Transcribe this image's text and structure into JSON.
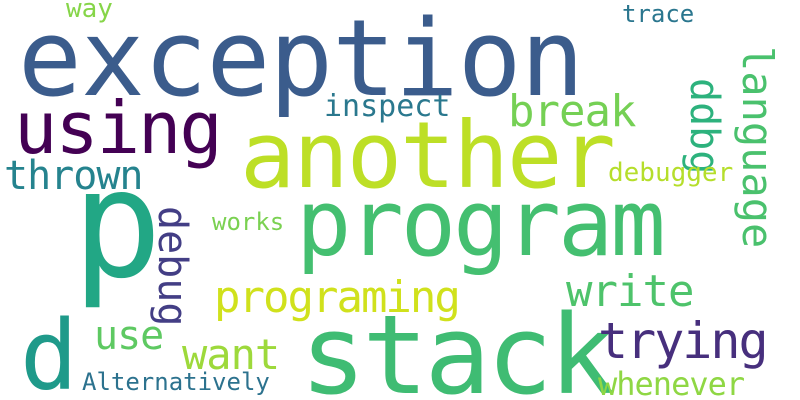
{
  "words": {
    "exception": {
      "text": "exception",
      "color": "#3b5c8c"
    },
    "another": {
      "text": "another",
      "color": "#bddf26"
    },
    "program": {
      "text": "program",
      "color": "#44bf70"
    },
    "stack": {
      "text": "stack",
      "color": "#3fbc73"
    },
    "p": {
      "text": "p",
      "color": "#22a785"
    },
    "d": {
      "text": "d",
      "color": "#1f9a8a"
    },
    "using": {
      "text": "using",
      "color": "#440154"
    },
    "programing": {
      "text": "programing",
      "color": "#d0e11c"
    },
    "trying": {
      "text": "trying",
      "color": "#472f7d"
    },
    "write": {
      "text": "write",
      "color": "#4ec36b"
    },
    "break": {
      "text": "break",
      "color": "#75d054"
    },
    "language": {
      "text": "language",
      "color": "#4ac16d"
    },
    "debug": {
      "text": "debug",
      "color": "#433e85"
    },
    "ddbg": {
      "text": "ddbg",
      "color": "#2db27d"
    },
    "thrown": {
      "text": "thrown",
      "color": "#25838e"
    },
    "want": {
      "text": "want",
      "color": "#9dd93b"
    },
    "use": {
      "text": "use",
      "color": "#5ec962"
    },
    "whenever": {
      "text": "whenever",
      "color": "#8fd744"
    },
    "inspect": {
      "text": "inspect",
      "color": "#2a788e"
    },
    "Alternatively": {
      "text": "Alternatively",
      "color": "#2c728e"
    },
    "debugger": {
      "text": "debugger",
      "color": "#b5de2b"
    },
    "works": {
      "text": "works",
      "color": "#7ad151"
    },
    "trace": {
      "text": "trace",
      "color": "#2a768e"
    },
    "way": {
      "text": "way",
      "color": "#86d549"
    }
  }
}
